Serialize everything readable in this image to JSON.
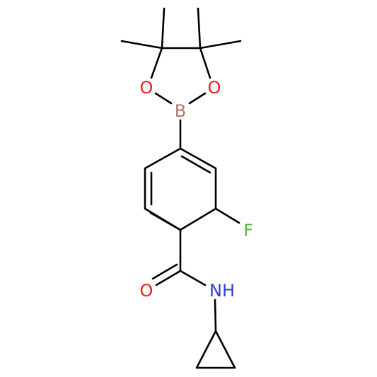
{
  "atoms": {
    "boron": "B",
    "oxygen_left": "O",
    "oxygen_right": "O",
    "fluorine": "F",
    "carbonyl_oxygen": "O",
    "amide_nitrogen": "NH"
  }
}
